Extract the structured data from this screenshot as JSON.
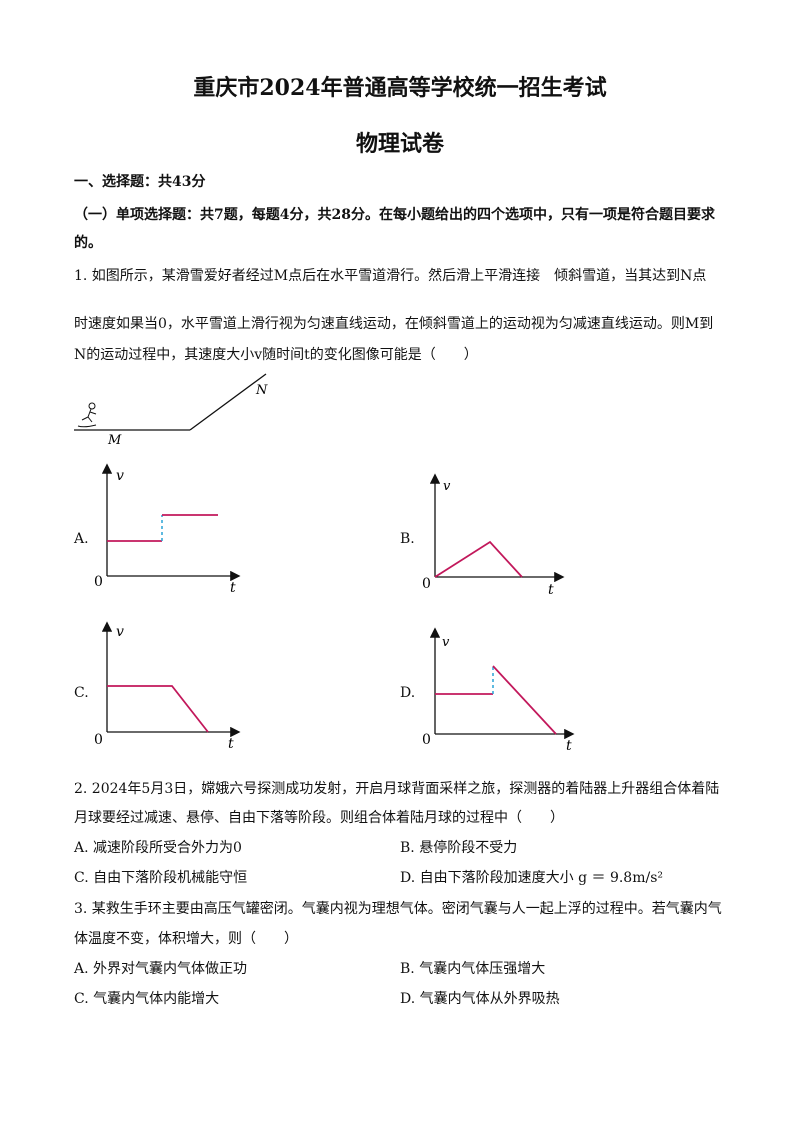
{
  "title": "重庆市2024年普通高等学校统一招生考试",
  "subtitle": "物理试卷",
  "section1": "一、选择题：共43分",
  "section1_sub_a": "（一）单项选择题：共7题，每题4分，共28分。在每小题给出的四个选项中，只有一项是符合题目要求",
  "section1_sub_b": "的。",
  "q1": {
    "line1": "1. 如图所示，某滑雪爱好者经过M点后在水平雪道滑行。然后滑上平滑连接　倾斜雪道，当其达到N点",
    "line2": "时速度如果当0，水平雪道上滑行视为匀速直线运动，在倾斜雪道上的运动视为匀减速直线运动。则M到",
    "line3": "N的运动过程中，其速度大小v随时间t的变化图像可能是（　　）",
    "fig_label_M": "M",
    "fig_label_N": "N",
    "options": [
      {
        "label": "A.",
        "axis_v": "v",
        "axis_t": "t",
        "origin": "0"
      },
      {
        "label": "B.",
        "axis_v": "v",
        "axis_t": "t",
        "origin": "0"
      },
      {
        "label": "C.",
        "axis_v": "v",
        "axis_t": "t",
        "origin": "0"
      },
      {
        "label": "D.",
        "axis_v": "v",
        "axis_t": "t",
        "origin": "0"
      }
    ]
  },
  "q2": {
    "line1": "2. 2024年5月3日，嫦娥六号探测成功发射，开启月球背面采样之旅，探测器的着陆器上升器组合体着陆",
    "line2": "月球要经过减速、悬停、自由下落等阶段。则组合体着陆月球的过程中（　　）",
    "optA": "A. 减速阶段所受合外力为0",
    "optB": "B. 悬停阶段不受力",
    "optC": "C. 自由下落阶段机械能守恒",
    "optD": "D. 自由下落阶段加速度大小 g ＝ 9.8m/s²"
  },
  "q3": {
    "line1": "3. 某救生手环主要由高压气罐密闭。气囊内视为理想气体。密闭气囊与人一起上浮的过程中。若气囊内气",
    "line2": "体温度不变，体积增大，则（　　）",
    "optA": "A. 外界对气囊内气体做正功",
    "optB": "B. 气囊内气体压强增大",
    "optC": "C. 气囊内气体内能增大",
    "optD": "D. 气囊内气体从外界吸热"
  },
  "colors": {
    "curve": "#c2185b",
    "dashed": "#29a3d6",
    "axis": "#111111"
  }
}
